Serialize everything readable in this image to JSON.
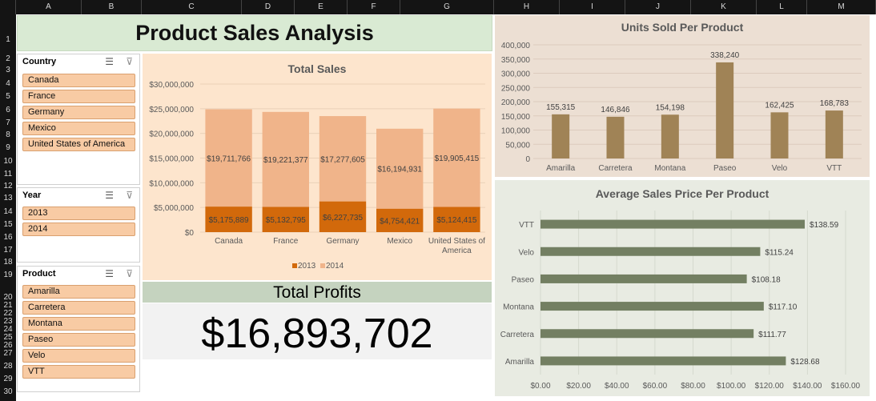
{
  "columns": [
    "A",
    "B",
    "C",
    "D",
    "E",
    "F",
    "G",
    "H",
    "I",
    "J",
    "K",
    "L",
    "M"
  ],
  "rows": [
    "1",
    "2",
    "3",
    "4",
    "5",
    "6",
    "7",
    "8",
    "9",
    "10",
    "11",
    "12",
    "13",
    "14",
    "15",
    "16",
    "17",
    "18",
    "19",
    "20",
    "21",
    "22",
    "23",
    "24",
    "25",
    "26",
    "27",
    "28",
    "29",
    "30"
  ],
  "title": "Product Sales Analysis",
  "slicers": {
    "country": {
      "header": "Country",
      "items": [
        "Canada",
        "France",
        "Germany",
        "Mexico",
        "United States of America"
      ]
    },
    "year": {
      "header": "Year",
      "items": [
        "2013",
        "2014"
      ]
    },
    "product": {
      "header": "Product",
      "items": [
        "Amarilla",
        "Carretera",
        "Montana",
        "Paseo",
        "Velo",
        "VTT"
      ]
    }
  },
  "icons": {
    "multi_select": "multi-select-icon",
    "clear_filter": "clear-filter-icon"
  },
  "profits": {
    "label": "Total Profits",
    "value": "$16,893,702"
  },
  "colors": {
    "y2013": "#d2690b",
    "y2014": "#f0b48a",
    "units_bar": "#a08356",
    "price_bar": "#737f62"
  },
  "chart_data": [
    {
      "type": "bar",
      "stacked": true,
      "title": "Total Sales",
      "categories": [
        "Canada",
        "France",
        "Germany",
        "Mexico",
        "United States of America"
      ],
      "series": [
        {
          "name": "2013",
          "values": [
            5175889,
            5132795,
            6227735,
            4754421,
            5124415
          ],
          "labels": [
            "$5,175,889",
            "$5,132,795",
            "$6,227,735",
            "$4,754,421",
            "$5,124,415"
          ]
        },
        {
          "name": "2014",
          "values": [
            19711766,
            19221377,
            17277605,
            16194931,
            19905415
          ],
          "labels": [
            "$19,711,766",
            "$19,221,377",
            "$17,277,605",
            "$16,194,931",
            "$19,905,415"
          ]
        }
      ],
      "ylim": [
        0,
        30000000
      ],
      "yticks": [
        "$0",
        "$5,000,000",
        "$10,000,000",
        "$15,000,000",
        "$20,000,000",
        "$25,000,000",
        "$30,000,000"
      ],
      "legend": "bottom",
      "grid": true
    },
    {
      "type": "bar",
      "title": "Units Sold Per Product",
      "categories": [
        "Amarilla",
        "Carretera",
        "Montana",
        "Paseo",
        "Velo",
        "VTT"
      ],
      "values": [
        155315,
        146846,
        154198,
        338240,
        162425,
        168783
      ],
      "labels": [
        "155,315",
        "146,846",
        "154,198",
        "338,240",
        "162,425",
        "168,783"
      ],
      "ylim": [
        0,
        400000
      ],
      "yticks": [
        "0",
        "50,000",
        "100,000",
        "150,000",
        "200,000",
        "250,000",
        "300,000",
        "350,000",
        "400,000"
      ],
      "grid": true
    },
    {
      "type": "bar",
      "orientation": "horizontal",
      "title": "Average Sales Price Per Product",
      "categories": [
        "VTT",
        "Velo",
        "Paseo",
        "Montana",
        "Carretera",
        "Amarilla"
      ],
      "values": [
        138.59,
        115.24,
        108.18,
        117.1,
        111.77,
        128.68
      ],
      "labels": [
        "$138.59",
        "$115.24",
        "$108.18",
        "$117.10",
        "$111.77",
        "$128.68"
      ],
      "xlim": [
        0,
        160
      ],
      "xticks": [
        "$0.00",
        "$20.00",
        "$40.00",
        "$60.00",
        "$80.00",
        "$100.00",
        "$120.00",
        "$140.00",
        "$160.00"
      ],
      "grid": true
    }
  ]
}
